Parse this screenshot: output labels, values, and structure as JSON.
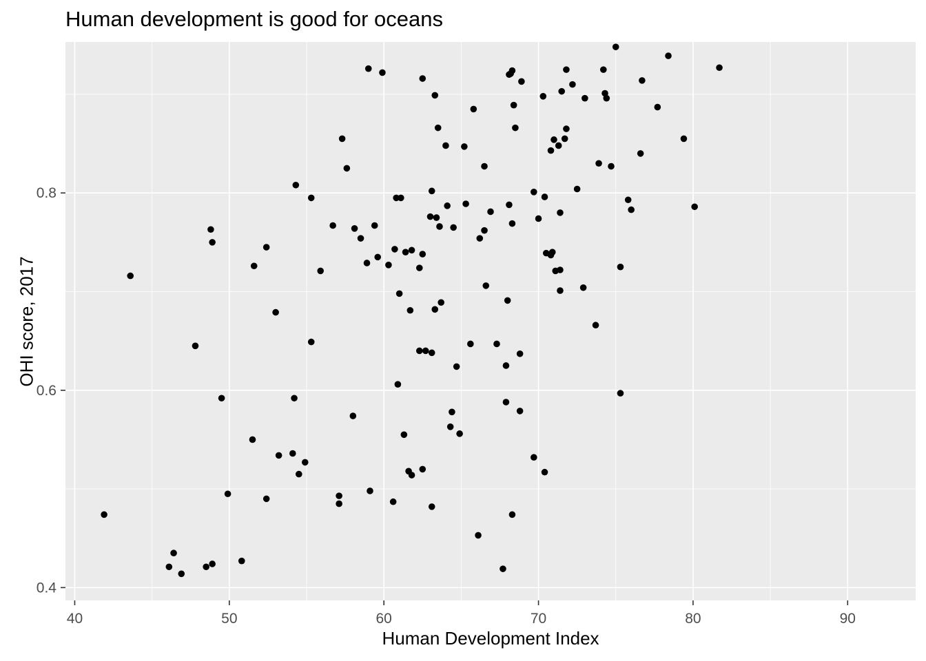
{
  "chart_data": {
    "type": "scatter",
    "title": "Human development is good for oceans",
    "xlabel": "Human Development Index",
    "ylabel": "OHI score, 2017",
    "xlim": [
      39.4,
      94.4
    ],
    "ylim": [
      0.387,
      0.953
    ],
    "x_ticks": [
      40,
      50,
      60,
      70,
      80,
      90
    ],
    "y_ticks": [
      0.4,
      0.6,
      0.8
    ],
    "y_tick_labels": [
      "0.4",
      "0.6",
      "0.8"
    ],
    "grid": true,
    "background": "#EBEBEB",
    "grid_color": "#FFFFFF",
    "point_color": "#000000",
    "points": [
      [
        41.9,
        0.474
      ],
      [
        43.6,
        0.716
      ],
      [
        46.1,
        0.421
      ],
      [
        46.4,
        0.435
      ],
      [
        46.9,
        0.414
      ],
      [
        47.8,
        0.645
      ],
      [
        48.5,
        0.421
      ],
      [
        48.8,
        0.763
      ],
      [
        48.9,
        0.75
      ],
      [
        48.9,
        0.424
      ],
      [
        49.5,
        0.592
      ],
      [
        49.9,
        0.495
      ],
      [
        50.8,
        0.427
      ],
      [
        51.5,
        0.55
      ],
      [
        51.6,
        0.726
      ],
      [
        52.4,
        0.745
      ],
      [
        52.4,
        0.49
      ],
      [
        53.0,
        0.679
      ],
      [
        53.2,
        0.534
      ],
      [
        54.1,
        0.536
      ],
      [
        54.2,
        0.592
      ],
      [
        54.3,
        0.808
      ],
      [
        54.5,
        0.515
      ],
      [
        54.9,
        0.527
      ],
      [
        55.3,
        0.795
      ],
      [
        55.3,
        0.649
      ],
      [
        55.9,
        0.721
      ],
      [
        56.7,
        0.767
      ],
      [
        57.1,
        0.493
      ],
      [
        57.1,
        0.485
      ],
      [
        57.3,
        0.855
      ],
      [
        57.6,
        0.825
      ],
      [
        58.0,
        0.574
      ],
      [
        58.1,
        0.764
      ],
      [
        58.5,
        0.754
      ],
      [
        58.9,
        0.729
      ],
      [
        59.0,
        0.926
      ],
      [
        59.1,
        0.498
      ],
      [
        59.4,
        0.767
      ],
      [
        59.6,
        0.735
      ],
      [
        59.9,
        0.922
      ],
      [
        60.3,
        0.727
      ],
      [
        60.6,
        0.487
      ],
      [
        60.7,
        0.743
      ],
      [
        60.8,
        0.795
      ],
      [
        60.9,
        0.606
      ],
      [
        61.0,
        0.698
      ],
      [
        61.1,
        0.795
      ],
      [
        61.3,
        0.555
      ],
      [
        61.4,
        0.74
      ],
      [
        61.6,
        0.518
      ],
      [
        61.7,
        0.681
      ],
      [
        61.8,
        0.742
      ],
      [
        61.8,
        0.514
      ],
      [
        62.3,
        0.64
      ],
      [
        62.3,
        0.724
      ],
      [
        62.5,
        0.916
      ],
      [
        62.5,
        0.738
      ],
      [
        62.5,
        0.52
      ],
      [
        62.7,
        0.64
      ],
      [
        63.0,
        0.776
      ],
      [
        63.1,
        0.802
      ],
      [
        63.1,
        0.638
      ],
      [
        63.1,
        0.482
      ],
      [
        63.3,
        0.682
      ],
      [
        63.3,
        0.899
      ],
      [
        63.4,
        0.775
      ],
      [
        63.5,
        0.866
      ],
      [
        63.6,
        0.766
      ],
      [
        63.7,
        0.689
      ],
      [
        64.0,
        0.848
      ],
      [
        64.1,
        0.787
      ],
      [
        64.3,
        0.563
      ],
      [
        64.4,
        0.578
      ],
      [
        64.5,
        0.765
      ],
      [
        64.7,
        0.624
      ],
      [
        64.9,
        0.556
      ],
      [
        65.2,
        0.847
      ],
      [
        65.3,
        0.789
      ],
      [
        65.6,
        0.647
      ],
      [
        65.8,
        0.885
      ],
      [
        66.1,
        0.453
      ],
      [
        66.2,
        0.754
      ],
      [
        66.5,
        0.762
      ],
      [
        66.5,
        0.827
      ],
      [
        66.6,
        0.706
      ],
      [
        66.9,
        0.781
      ],
      [
        67.3,
        0.647
      ],
      [
        67.7,
        0.419
      ],
      [
        67.9,
        0.588
      ],
      [
        67.9,
        0.625
      ],
      [
        68.0,
        0.691
      ],
      [
        68.1,
        0.788
      ],
      [
        68.1,
        0.92
      ],
      [
        68.2,
        0.921
      ],
      [
        68.3,
        0.924
      ],
      [
        68.3,
        0.769
      ],
      [
        68.3,
        0.474
      ],
      [
        68.4,
        0.889
      ],
      [
        68.5,
        0.866
      ],
      [
        68.8,
        0.637
      ],
      [
        68.8,
        0.579
      ],
      [
        68.9,
        0.913
      ],
      [
        69.7,
        0.801
      ],
      [
        69.7,
        0.532
      ],
      [
        70.0,
        0.774
      ],
      [
        70.3,
        0.898
      ],
      [
        70.4,
        0.796
      ],
      [
        70.4,
        0.517
      ],
      [
        70.5,
        0.739
      ],
      [
        70.8,
        0.843
      ],
      [
        70.8,
        0.737
      ],
      [
        70.9,
        0.74
      ],
      [
        71.0,
        0.854
      ],
      [
        71.1,
        0.721
      ],
      [
        71.3,
        0.848
      ],
      [
        71.4,
        0.722
      ],
      [
        71.4,
        0.78
      ],
      [
        71.4,
        0.701
      ],
      [
        71.5,
        0.903
      ],
      [
        71.7,
        0.855
      ],
      [
        71.8,
        0.865
      ],
      [
        71.8,
        0.925
      ],
      [
        72.2,
        0.91
      ],
      [
        72.5,
        0.804
      ],
      [
        72.9,
        0.704
      ],
      [
        73.0,
        0.896
      ],
      [
        73.7,
        0.666
      ],
      [
        73.9,
        0.83
      ],
      [
        74.2,
        0.925
      ],
      [
        74.3,
        0.901
      ],
      [
        74.4,
        0.896
      ],
      [
        74.7,
        0.827
      ],
      [
        75.0,
        0.948
      ],
      [
        75.3,
        0.725
      ],
      [
        75.3,
        0.597
      ],
      [
        75.8,
        0.793
      ],
      [
        76.0,
        0.783
      ],
      [
        76.6,
        0.84
      ],
      [
        76.7,
        0.914
      ],
      [
        77.7,
        0.887
      ],
      [
        78.4,
        0.939
      ],
      [
        79.4,
        0.855
      ],
      [
        80.1,
        0.786
      ],
      [
        81.7,
        0.927
      ]
    ]
  }
}
